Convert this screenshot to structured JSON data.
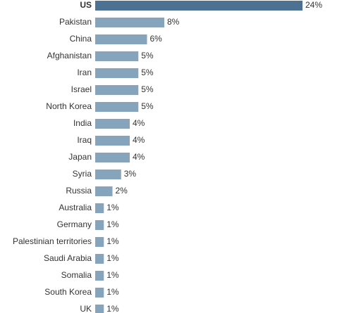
{
  "chart_data": {
    "type": "hbar",
    "categories": [
      "US",
      "Pakistan",
      "China",
      "Afghanistan",
      "Iran",
      "Israel",
      "North Korea",
      "India",
      "Iraq",
      "Japan",
      "Syria",
      "Russia",
      "Australia",
      "Germany",
      "Palestinian territories",
      "Saudi Arabia",
      "Somalia",
      "South Korea",
      "UK"
    ],
    "values": [
      24,
      8,
      6,
      5,
      5,
      5,
      5,
      4,
      4,
      4,
      3,
      2,
      1,
      1,
      1,
      1,
      1,
      1,
      1
    ],
    "value_labels": [
      "24%",
      "8%",
      "6%",
      "5%",
      "5%",
      "5%",
      "5%",
      "4%",
      "4%",
      "4%",
      "3%",
      "2%",
      "1%",
      "1%",
      "1%",
      "1%",
      "1%",
      "1%",
      "1%"
    ],
    "colors": [
      "#4d7193",
      "#87a4bd",
      "#87a4bd",
      "#87a4bd",
      "#87a4bd",
      "#87a4bd",
      "#87a4bd",
      "#87a4bd",
      "#87a4bd",
      "#87a4bd",
      "#87a4bd",
      "#87a4bd",
      "#87a4bd",
      "#87a4bd",
      "#87a4bd",
      "#87a4bd",
      "#87a4bd",
      "#87a4bd",
      "#87a4bd"
    ],
    "emphasis": [
      0
    ]
  }
}
